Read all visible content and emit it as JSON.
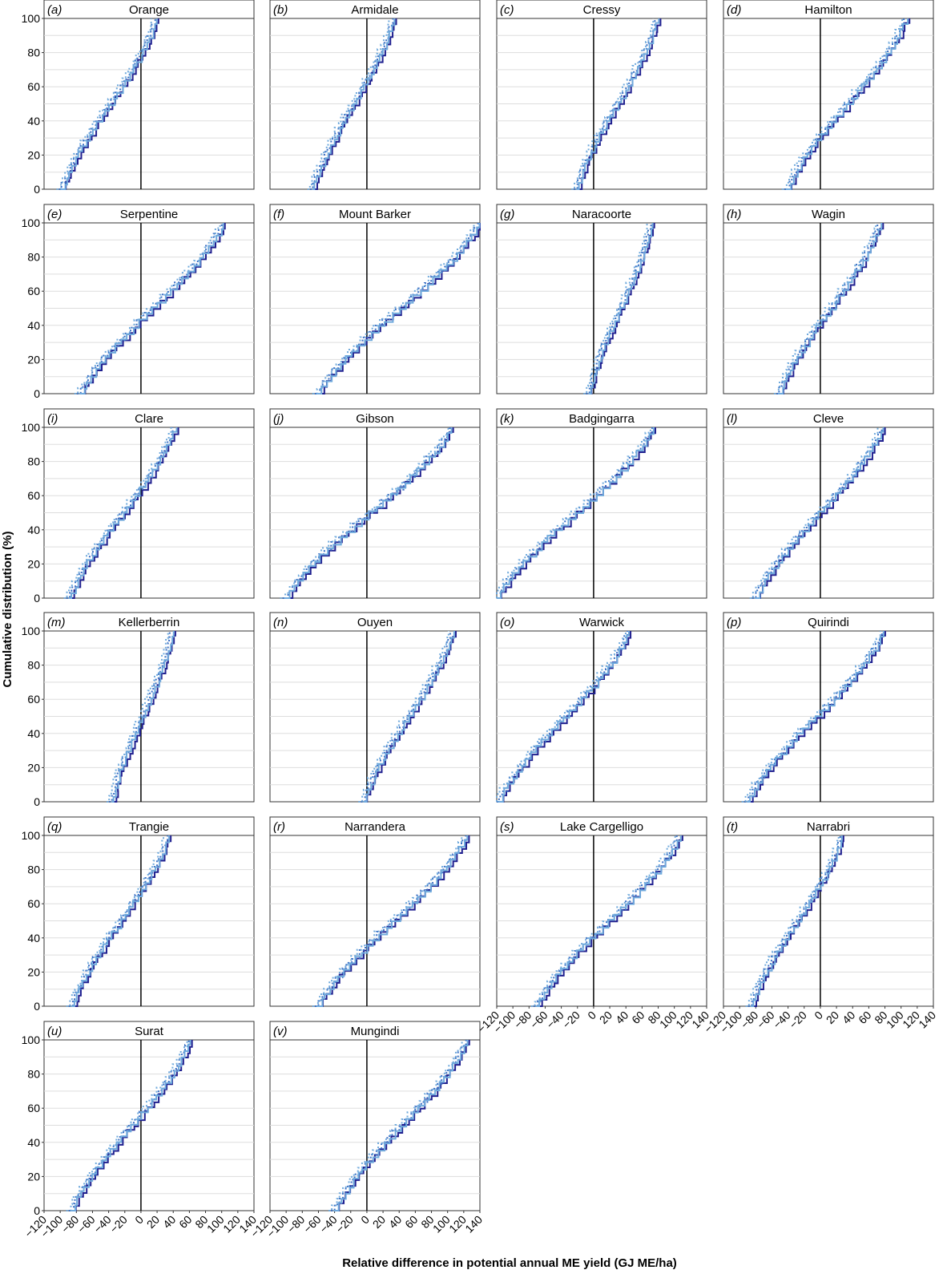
{
  "figure": {
    "ylabel": "Cumulative distribution (%)",
    "xlabel": "Relative difference in potential annual ME yield (GJ ME/ha)"
  },
  "colors": {
    "series_dark": "#1f1f8f",
    "series_mid": "#3a6fc4",
    "series_light": "#6fa9dc",
    "zero_line": "#000000",
    "grid": "#dddddd",
    "panel_border": "#333333"
  },
  "chart_data": {
    "type": "line",
    "xlim": [
      -120,
      140
    ],
    "ylim": [
      0,
      100
    ],
    "x_ticks": [
      "-120",
      "-100",
      "-80",
      "-60",
      "-40",
      "-20",
      "0",
      "20",
      "40",
      "60",
      "80",
      "100",
      "120",
      "140"
    ],
    "y_ticks": [
      "0",
      "20",
      "40",
      "60",
      "80",
      "100"
    ],
    "grid": "horizontal",
    "line_styles": [
      "solid",
      "dotted",
      "dotted",
      "solid"
    ],
    "panels": [
      {
        "letter": "(a)",
        "title": "Orange",
        "range": [
          -97,
          20
        ]
      },
      {
        "letter": "(b)",
        "title": "Armidale",
        "range": [
          -66,
          34
        ]
      },
      {
        "letter": "(c)",
        "title": "Cressy",
        "range": [
          -20,
          80
        ]
      },
      {
        "letter": "(d)",
        "title": "Hamilton",
        "range": [
          -40,
          107
        ]
      },
      {
        "letter": "(e)",
        "title": "Serpentine",
        "range": [
          -75,
          103
        ]
      },
      {
        "letter": "(f)",
        "title": "Mount Barker",
        "range": [
          -60,
          140
        ]
      },
      {
        "letter": "(g)",
        "title": "Naracoorte",
        "range": [
          -5,
          73
        ]
      },
      {
        "letter": "(h)",
        "title": "Wagin",
        "range": [
          -50,
          75
        ]
      },
      {
        "letter": "(i)",
        "title": "Clare",
        "range": [
          -88,
          43
        ]
      },
      {
        "letter": "(j)",
        "title": "Gibson",
        "range": [
          -100,
          106
        ]
      },
      {
        "letter": "(k)",
        "title": "Badgingarra",
        "range": [
          -120,
          75
        ]
      },
      {
        "letter": "(l)",
        "title": "Cleve",
        "range": [
          -80,
          78
        ]
      },
      {
        "letter": "(m)",
        "title": "Kellerberrin",
        "range": [
          -35,
          40
        ]
      },
      {
        "letter": "(n)",
        "title": "Ouyen",
        "range": [
          -3,
          107
        ]
      },
      {
        "letter": "(o)",
        "title": "Warwick",
        "range": [
          -117,
          45
        ]
      },
      {
        "letter": "(p)",
        "title": "Quirindi",
        "range": [
          -90,
          79
        ]
      },
      {
        "letter": "(q)",
        "title": "Trangie",
        "range": [
          -85,
          35
        ]
      },
      {
        "letter": "(r)",
        "title": "Narrandera",
        "range": [
          -60,
          124
        ]
      },
      {
        "letter": "(s)",
        "title": "Lake Cargelligo",
        "range": [
          -70,
          107
        ]
      },
      {
        "letter": "(t)",
        "title": "Narrabri",
        "range": [
          -85,
          28
        ]
      },
      {
        "letter": "(u)",
        "title": "Surat",
        "range": [
          -85,
          62
        ]
      },
      {
        "letter": "(v)",
        "title": "Mungindi",
        "range": [
          -40,
          125
        ]
      }
    ]
  }
}
